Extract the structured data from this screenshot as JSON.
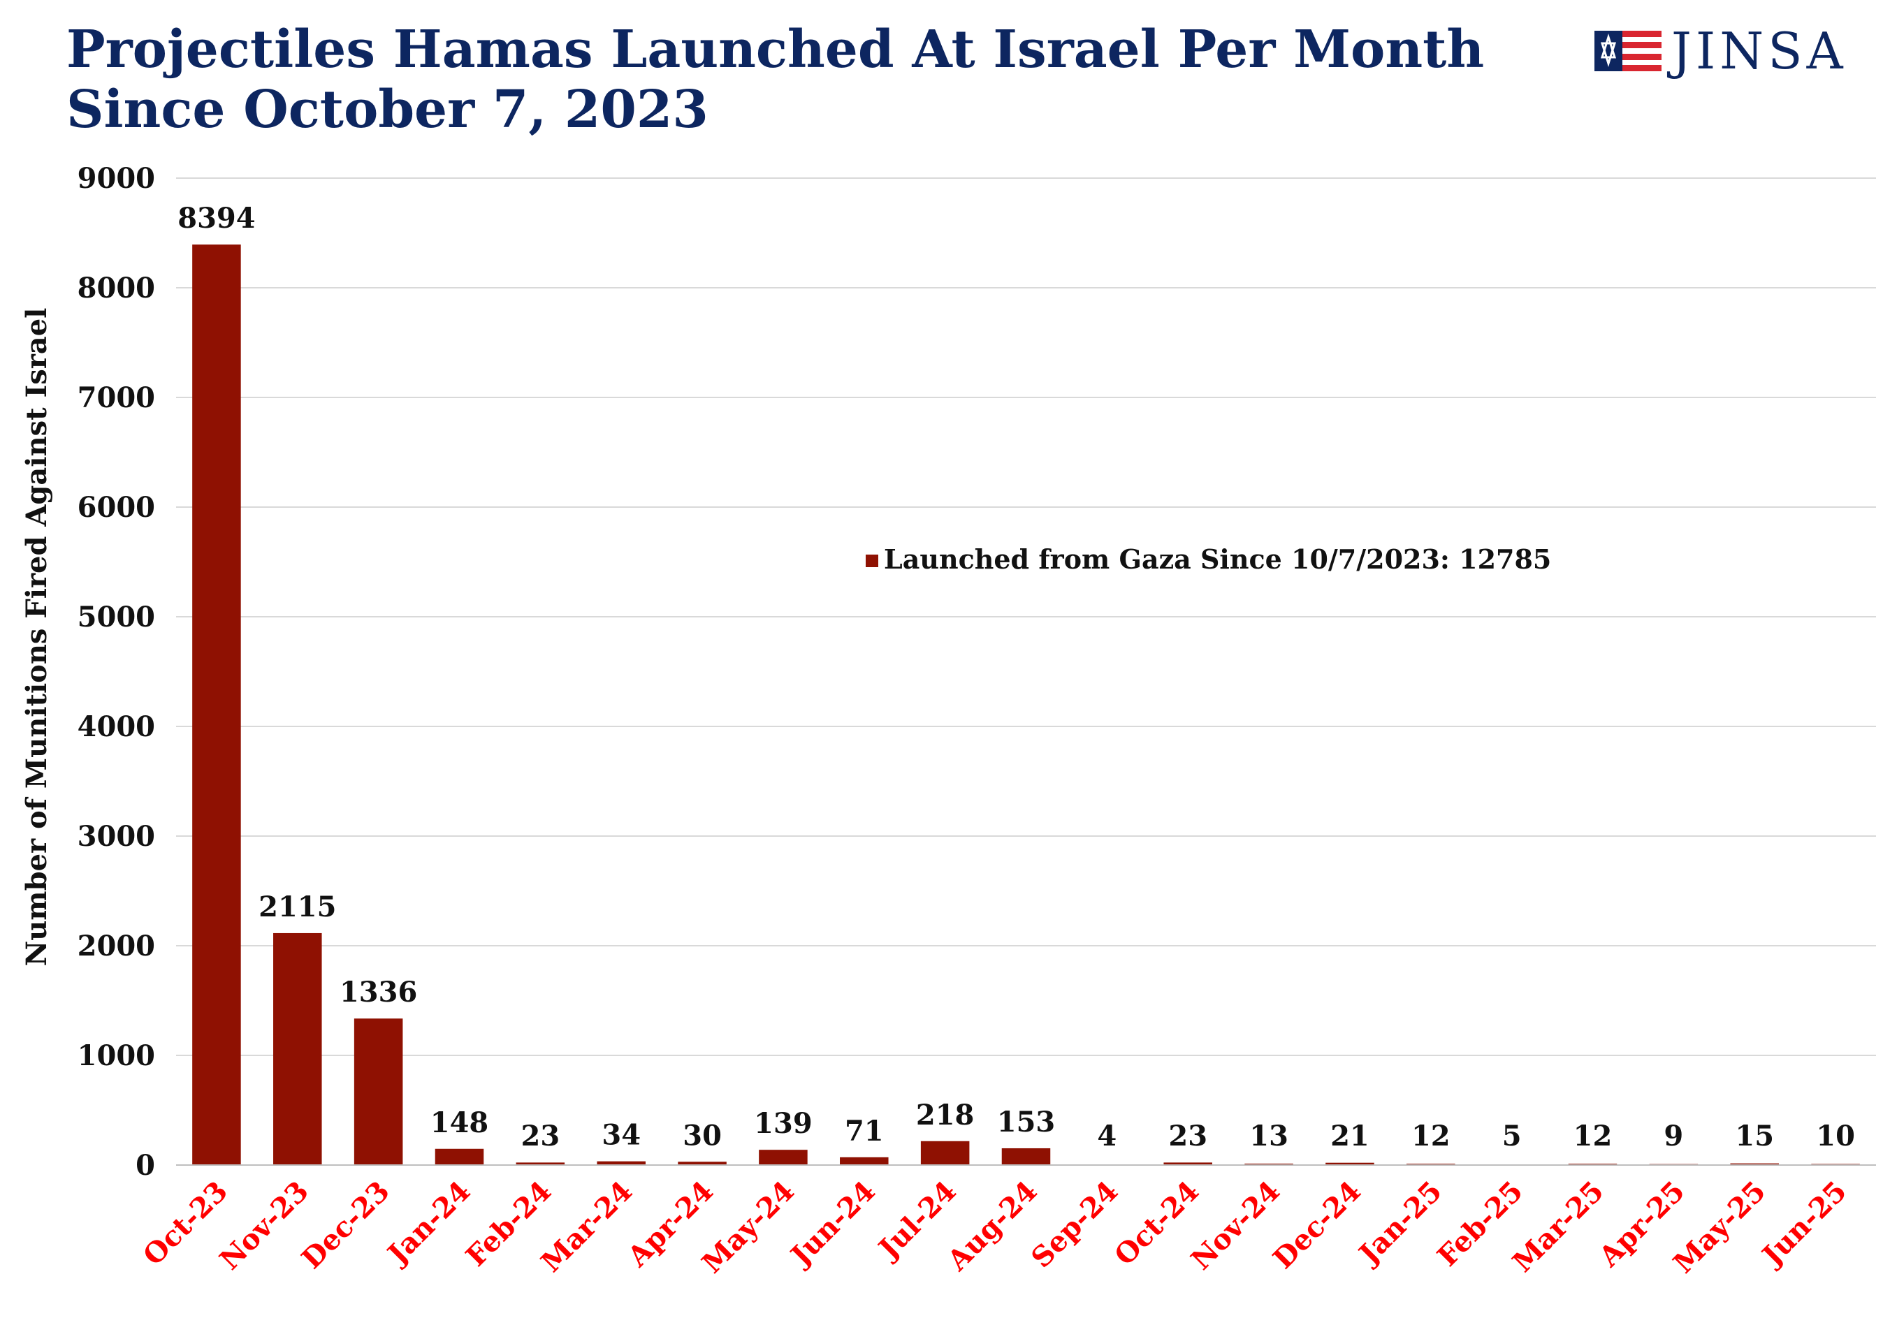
{
  "header": {
    "title_line1": "Projectiles Hamas Launched At Israel Per Month",
    "title_line2": "Since October 7, 2023",
    "logo_text": "JINSA",
    "logo_icon": "flag-star-of-david-icon"
  },
  "colors": {
    "title": "#0d2660",
    "bar": "#8f1102",
    "x_tick": "#ff0000",
    "grid": "#d9d9d9",
    "logo_red": "#d92630",
    "logo_blue": "#0d2660"
  },
  "chart_data": {
    "type": "bar",
    "title": "Projectiles Hamas Launched At Israel Per Month Since October 7, 2023",
    "xlabel": "",
    "ylabel": "Number of Munitions Fired Against Israel",
    "ylim": [
      0,
      9000
    ],
    "yticks": [
      0,
      1000,
      2000,
      3000,
      4000,
      5000,
      6000,
      7000,
      8000,
      9000
    ],
    "grid": true,
    "legend_position": "center-right",
    "categories": [
      "Oct-23",
      "Nov-23",
      "Dec-23",
      "Jan-24",
      "Feb-24",
      "Mar-24",
      "Apr-24",
      "May-24",
      "Jun-24",
      "Jul-24",
      "Aug-24",
      "Sep-24",
      "Oct-24",
      "Nov-24",
      "Dec-24",
      "Jan-25",
      "Feb-25",
      "Mar-25",
      "Apr-25",
      "May-25",
      "Jun-25"
    ],
    "series": [
      {
        "name": "Launched from Gaza Since 10/7/2023: 12785",
        "values": [
          8394,
          2115,
          1336,
          148,
          23,
          34,
          30,
          139,
          71,
          218,
          153,
          4,
          23,
          13,
          21,
          12,
          5,
          12,
          9,
          15,
          10
        ]
      }
    ]
  }
}
